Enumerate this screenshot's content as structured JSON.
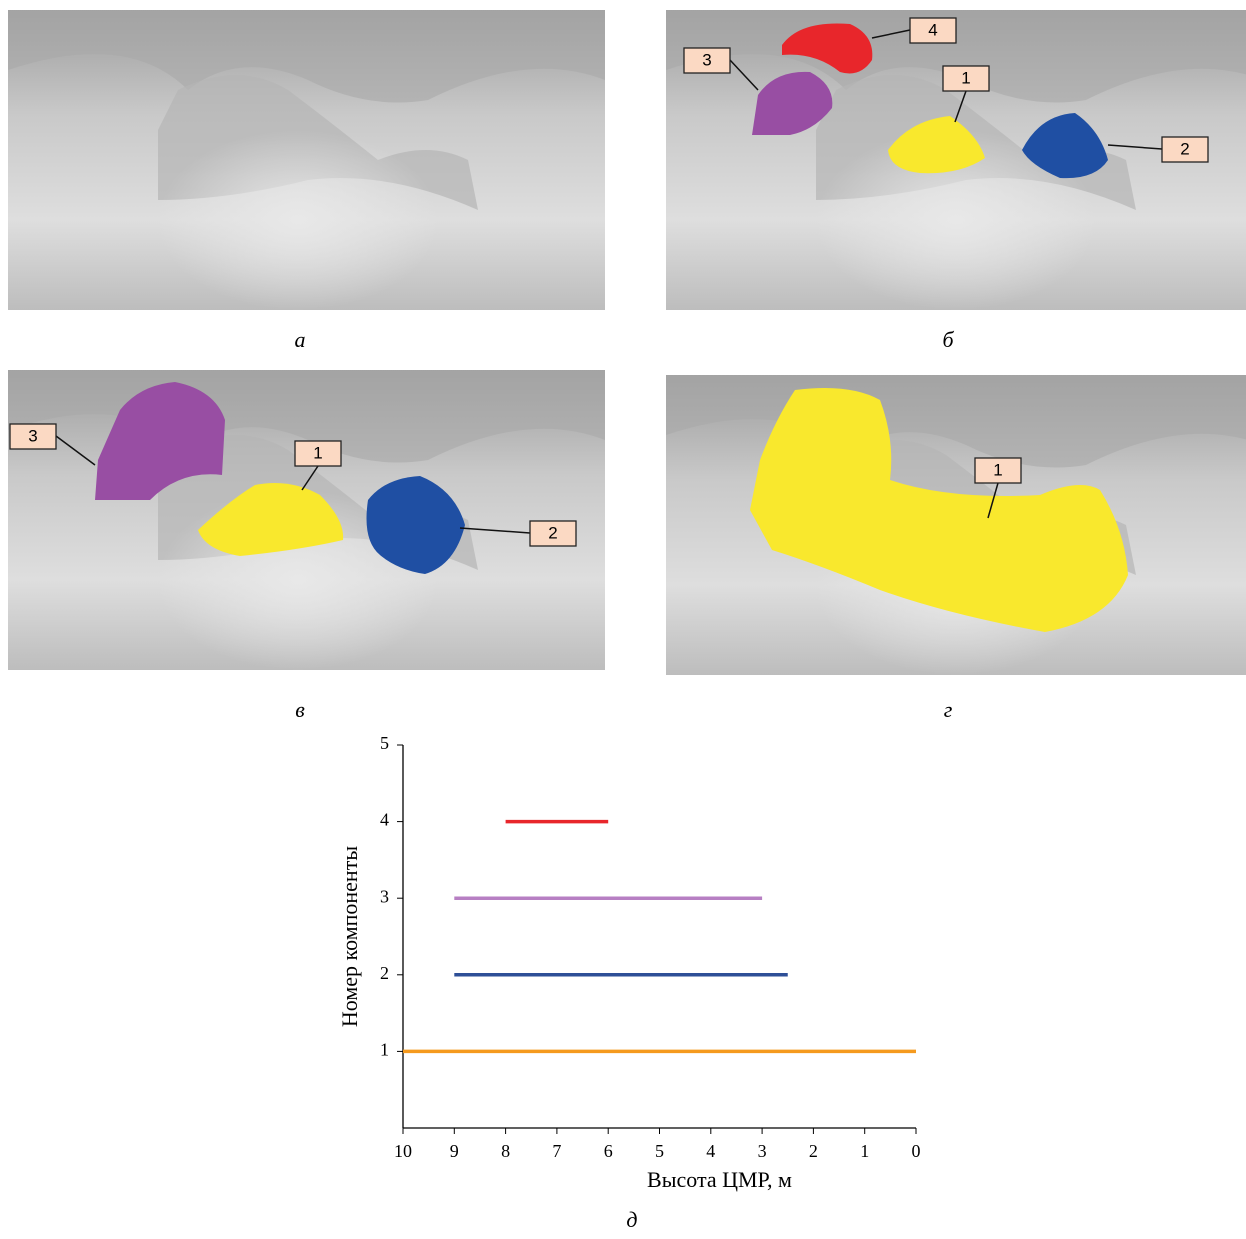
{
  "panels": [
    {
      "caption": "а",
      "callouts": []
    },
    {
      "caption": "б",
      "callouts": [
        "1",
        "2",
        "3",
        "4"
      ]
    },
    {
      "caption": "в",
      "callouts": [
        "1",
        "2",
        "3"
      ]
    },
    {
      "caption": "г",
      "callouts": [
        "1"
      ]
    }
  ],
  "chart_data": {
    "type": "line",
    "caption": "д",
    "x_label": "Высота ЦМР, м",
    "y_label": "Номер компоненты",
    "xlim": [
      10,
      0
    ],
    "xticks": [
      10,
      9,
      8,
      7,
      6,
      5,
      4,
      3,
      2,
      1,
      0
    ],
    "ylim": [
      0,
      5
    ],
    "yticks": [
      1,
      2,
      3,
      4,
      5
    ],
    "series": [
      {
        "color": "#f59a1e",
        "x": [
          10,
          0
        ],
        "values": [
          1,
          1
        ]
      },
      {
        "color": "#2e4f97",
        "x": [
          9,
          2.5
        ],
        "values": [
          2,
          2
        ]
      },
      {
        "color": "#b77fc3",
        "x": [
          9,
          3
        ],
        "values": [
          3,
          3
        ]
      },
      {
        "color": "#e8262b",
        "x": [
          8,
          6
        ],
        "values": [
          4,
          4
        ]
      }
    ]
  }
}
